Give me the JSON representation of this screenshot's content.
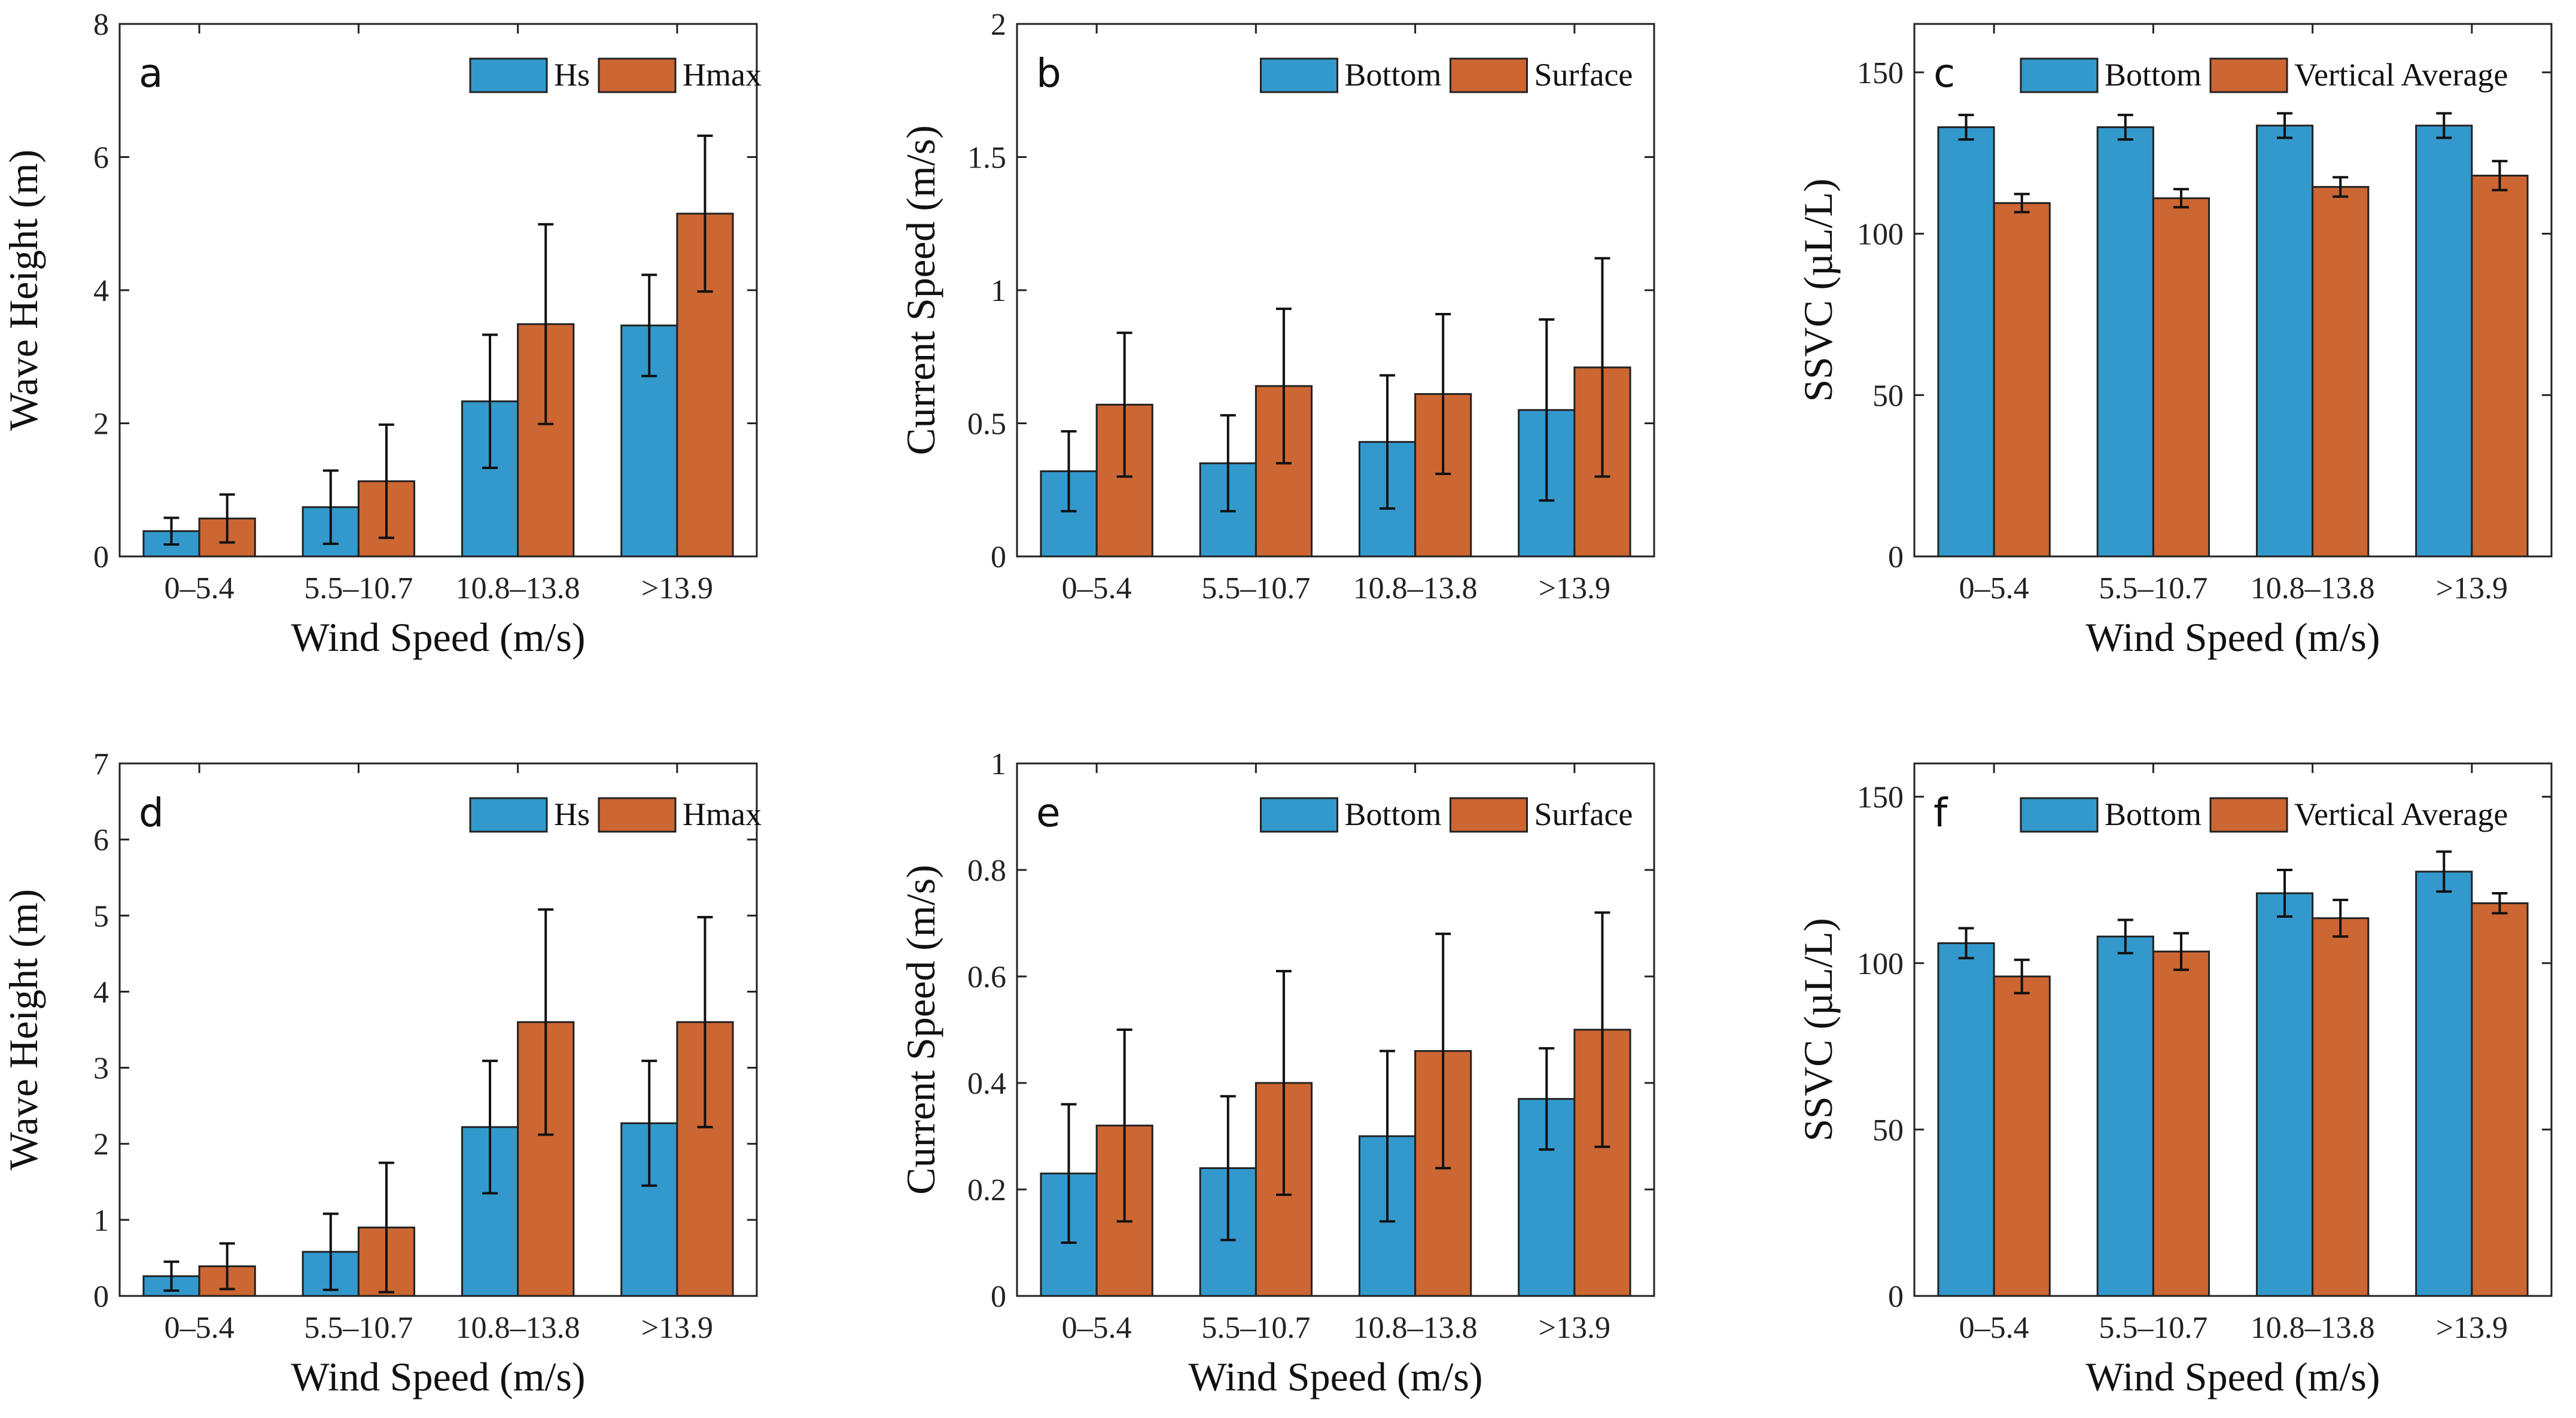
{
  "colors": {
    "series1": "#3399cc",
    "series2": "#cc6633",
    "axis": "#222222",
    "error": "#111111"
  },
  "chart_data": [
    {
      "type": "bar",
      "panel": "a",
      "categories": [
        "0–5.4",
        "5.5–10.7",
        "10.8–13.8",
        ">13.9"
      ],
      "xlabel": "Wind Speed (m/s)",
      "ylabel": "Wave Height (m)",
      "ylim": [
        0,
        8
      ],
      "yticks": [
        0,
        2,
        4,
        6,
        8
      ],
      "ytick_labels": [
        "0",
        "2",
        "4",
        "6",
        "8"
      ],
      "legend": "top-right",
      "series": [
        {
          "name": "Hs",
          "values": [
            0.38,
            0.74,
            2.33,
            3.47
          ],
          "errors": [
            0.2,
            0.55,
            1.0,
            0.76
          ]
        },
        {
          "name": "Hmax",
          "values": [
            0.57,
            1.13,
            3.49,
            5.15
          ],
          "errors": [
            0.36,
            0.85,
            1.5,
            1.17
          ]
        }
      ]
    },
    {
      "type": "bar",
      "panel": "b",
      "categories": [
        "0–5.4",
        "5.5–10.7",
        "10.8–13.8",
        ">13.9"
      ],
      "xlabel": "",
      "ylabel": "Current Speed (m/s)",
      "ylim": [
        0,
        2
      ],
      "yticks": [
        0,
        0.5,
        1,
        1.5,
        2
      ],
      "ytick_labels": [
        "0",
        "0.5",
        "1",
        "1.5",
        "2"
      ],
      "legend": "top-right",
      "series": [
        {
          "name": "Bottom",
          "values": [
            0.32,
            0.35,
            0.43,
            0.55
          ],
          "errors": [
            0.15,
            0.18,
            0.25,
            0.34
          ]
        },
        {
          "name": "Surface",
          "values": [
            0.57,
            0.64,
            0.61,
            0.71
          ],
          "errors": [
            0.27,
            0.29,
            0.3,
            0.41
          ]
        }
      ]
    },
    {
      "type": "bar",
      "panel": "c",
      "categories": [
        "0–5.4",
        "5.5–10.7",
        "10.8–13.8",
        ">13.9"
      ],
      "xlabel": "Wind Speed (m/s)",
      "ylabel": "SSVC (µL/L)",
      "ylim": [
        0,
        165
      ],
      "yticks": [
        0,
        50,
        100,
        150
      ],
      "ytick_labels": [
        "0",
        "50",
        "100",
        "150"
      ],
      "legend": "top-right",
      "series": [
        {
          "name": "Bottom",
          "values": [
            133,
            133,
            133.5,
            133.5
          ],
          "errors": [
            3.8,
            3.8,
            3.8,
            3.8
          ]
        },
        {
          "name": "Vertical Average",
          "values": [
            109.5,
            111,
            114.5,
            118
          ],
          "errors": [
            2.8,
            2.8,
            3,
            4.5
          ]
        }
      ]
    },
    {
      "type": "bar",
      "panel": "d",
      "categories": [
        "0–5.4",
        "5.5–10.7",
        "10.8–13.8",
        ">13.9"
      ],
      "xlabel": "Wind Speed (m/s)",
      "ylabel": "Wave Height (m)",
      "ylim": [
        0,
        7
      ],
      "yticks": [
        0,
        1,
        2,
        3,
        4,
        5,
        6,
        7
      ],
      "ytick_labels": [
        "0",
        "1",
        "2",
        "3",
        "4",
        "5",
        "6",
        "7"
      ],
      "legend": "top-right",
      "series": [
        {
          "name": "Hs",
          "values": [
            0.26,
            0.58,
            2.22,
            2.27
          ],
          "errors": [
            0.19,
            0.5,
            0.87,
            0.82
          ]
        },
        {
          "name": "Hmax",
          "values": [
            0.39,
            0.9,
            3.6,
            3.6
          ],
          "errors": [
            0.3,
            0.85,
            1.48,
            1.38
          ]
        }
      ]
    },
    {
      "type": "bar",
      "panel": "e",
      "categories": [
        "0–5.4",
        "5.5–10.7",
        "10.8–13.8",
        ">13.9"
      ],
      "xlabel": "Wind Speed (m/s)",
      "ylabel": "Current Speed (m/s)",
      "ylim": [
        0,
        1
      ],
      "yticks": [
        0,
        0.2,
        0.4,
        0.6,
        0.8,
        1
      ],
      "ytick_labels": [
        "0",
        "0.2",
        "0.4",
        "0.6",
        "0.8",
        "1"
      ],
      "legend": "top-right",
      "series": [
        {
          "name": "Bottom",
          "values": [
            0.23,
            0.24,
            0.3,
            0.37
          ],
          "errors": [
            0.13,
            0.135,
            0.16,
            0.095
          ]
        },
        {
          "name": "Surface",
          "values": [
            0.32,
            0.4,
            0.46,
            0.5
          ],
          "errors": [
            0.18,
            0.21,
            0.22,
            0.22
          ]
        }
      ]
    },
    {
      "type": "bar",
      "panel": "f",
      "categories": [
        "0–5.4",
        "5.5–10.7",
        "10.8–13.8",
        ">13.9"
      ],
      "xlabel": "Wind Speed (m/s)",
      "ylabel": "SSVC (µL/L)",
      "ylim": [
        0,
        160
      ],
      "yticks": [
        0,
        50,
        100,
        150
      ],
      "ytick_labels": [
        "0",
        "50",
        "100",
        "150"
      ],
      "legend": "top-right",
      "series": [
        {
          "name": "Bottom",
          "values": [
            106,
            108,
            121,
            127.5
          ],
          "errors": [
            4.5,
            5,
            7,
            6
          ]
        },
        {
          "name": "Vertical Average",
          "values": [
            96,
            103.5,
            113.5,
            118
          ],
          "errors": [
            5,
            5.5,
            5.5,
            3
          ]
        }
      ]
    }
  ]
}
